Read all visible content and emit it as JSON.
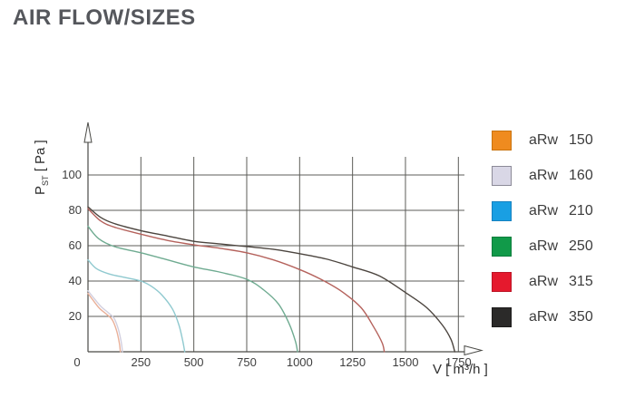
{
  "page": {
    "title": "AIR FLOW/SIZES"
  },
  "chart_data": {
    "type": "line",
    "title": "AIR FLOW/SIZES",
    "xlabel": "V [ m³/h ]",
    "ylabel": {
      "symbol": "P",
      "subscript": "ST",
      "unit": " [ Pa ]"
    },
    "xlim": [
      0,
      1790
    ],
    "ylim": [
      0,
      115
    ],
    "xticks": [
      0,
      250,
      500,
      750,
      1000,
      1250,
      1500,
      1750
    ],
    "yticks": [
      20,
      40,
      60,
      80,
      100
    ],
    "grid": true,
    "legend_position": "right",
    "axis_color": "#4a4a46",
    "grid_color": "#5c5c58",
    "tick_label_color": "#3e3e3e",
    "series": [
      {
        "name": "aRw",
        "size": "150",
        "swatch_color": "#ef8b1f",
        "swatch_border": "#c9730d",
        "line_color": "#e9b099",
        "points": [
          [
            0,
            33
          ],
          [
            25,
            29
          ],
          [
            55,
            24.5
          ],
          [
            90,
            21
          ],
          [
            115,
            18
          ],
          [
            135,
            12
          ],
          [
            148,
            5
          ],
          [
            153,
            0
          ]
        ]
      },
      {
        "name": "aRw",
        "size": "160",
        "swatch_color": "#d9d7e6",
        "swatch_border": "#8b8a97",
        "line_color": "#d2cfdf",
        "points": [
          [
            0,
            34.5
          ],
          [
            30,
            30
          ],
          [
            62,
            25.5
          ],
          [
            97,
            22
          ],
          [
            123,
            19
          ],
          [
            143,
            13
          ],
          [
            157,
            5.5
          ],
          [
            163,
            0
          ]
        ]
      },
      {
        "name": "aRw",
        "size": "210",
        "swatch_color": "#199fe3",
        "swatch_border": "#1581c0",
        "line_color": "#8fc9cf",
        "points": [
          [
            0,
            52
          ],
          [
            40,
            47
          ],
          [
            100,
            44
          ],
          [
            175,
            42
          ],
          [
            250,
            40
          ],
          [
            300,
            37
          ],
          [
            350,
            32
          ],
          [
            400,
            24
          ],
          [
            430,
            15
          ],
          [
            448,
            6
          ],
          [
            457,
            0
          ]
        ]
      },
      {
        "name": "aRw",
        "size": "250",
        "swatch_color": "#119a49",
        "swatch_border": "#0c7d3c",
        "line_color": "#6fab91",
        "points": [
          [
            0,
            71
          ],
          [
            50,
            64
          ],
          [
            125,
            59.5
          ],
          [
            250,
            56
          ],
          [
            375,
            52
          ],
          [
            500,
            48
          ],
          [
            625,
            45
          ],
          [
            750,
            41
          ],
          [
            830,
            35
          ],
          [
            900,
            27
          ],
          [
            950,
            16
          ],
          [
            980,
            6
          ],
          [
            990,
            0
          ]
        ]
      },
      {
        "name": "aRw",
        "size": "315",
        "swatch_color": "#e5192d",
        "swatch_border": "#bc1425",
        "line_color": "#b5625c",
        "points": [
          [
            0,
            81
          ],
          [
            60,
            74
          ],
          [
            125,
            70.5
          ],
          [
            250,
            66.5
          ],
          [
            375,
            63
          ],
          [
            500,
            60.5
          ],
          [
            625,
            58.5
          ],
          [
            750,
            56
          ],
          [
            875,
            52
          ],
          [
            1000,
            46.5
          ],
          [
            1100,
            41
          ],
          [
            1200,
            34
          ],
          [
            1290,
            25
          ],
          [
            1350,
            14
          ],
          [
            1390,
            5
          ],
          [
            1400,
            0
          ]
        ]
      },
      {
        "name": "aRw",
        "size": "350",
        "swatch_color": "#2b2a29",
        "swatch_border": "#1c1b1a",
        "line_color": "#4c453f",
        "points": [
          [
            0,
            82
          ],
          [
            60,
            76
          ],
          [
            125,
            72.5
          ],
          [
            250,
            68.5
          ],
          [
            375,
            65.5
          ],
          [
            500,
            62.5
          ],
          [
            625,
            61
          ],
          [
            750,
            59.5
          ],
          [
            875,
            58
          ],
          [
            1000,
            55.5
          ],
          [
            1125,
            52.5
          ],
          [
            1250,
            48
          ],
          [
            1375,
            43
          ],
          [
            1500,
            33.5
          ],
          [
            1600,
            25
          ],
          [
            1675,
            15
          ],
          [
            1715,
            7
          ],
          [
            1733,
            0
          ]
        ]
      }
    ]
  }
}
